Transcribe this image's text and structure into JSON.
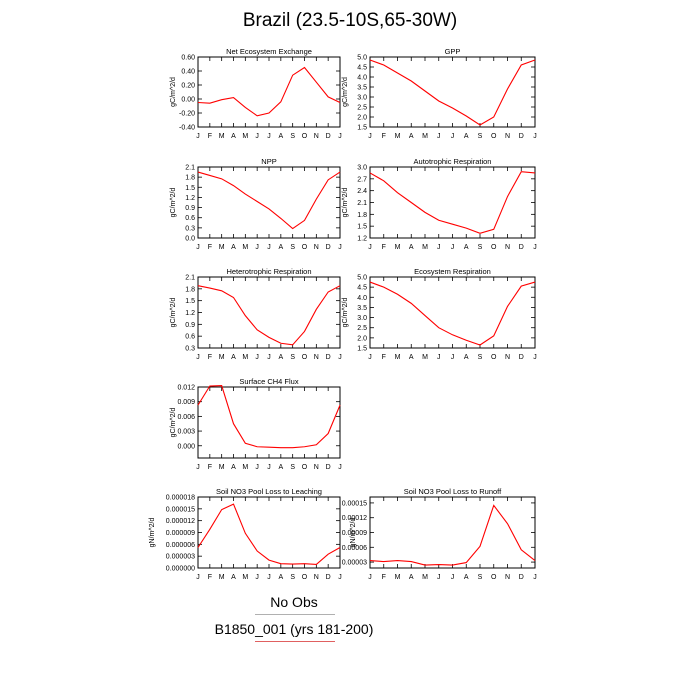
{
  "title": "Brazil (23.5-10S,65-30W)",
  "legend": {
    "obs_label": "No Obs",
    "case_label": "B1850_001 (yrs 181-200)",
    "colors": {
      "obs": "#b0b0b0",
      "case": "#ff0000"
    }
  },
  "month_labels": [
    "J",
    "F",
    "M",
    "A",
    "M",
    "J",
    "J",
    "A",
    "S",
    "O",
    "N",
    "D",
    "J"
  ],
  "chart_data": [
    {
      "type": "line",
      "title": "Net Ecosystem Exchange",
      "ylabel": "gC/m^2/d",
      "ylim": [
        -0.4,
        0.6
      ],
      "yticks": [
        "-0.40",
        "-0.20",
        "0.00",
        "0.20",
        "0.40",
        "0.60"
      ],
      "ytick_values": [
        -0.4,
        -0.2,
        0.0,
        0.2,
        0.4,
        0.6
      ],
      "x": [
        "J",
        "F",
        "M",
        "A",
        "M",
        "J",
        "J",
        "A",
        "S",
        "O",
        "N",
        "D",
        "J"
      ],
      "series": [
        {
          "values": [
            -0.05,
            -0.06,
            -0.01,
            0.02,
            -0.12,
            -0.24,
            -0.2,
            -0.04,
            0.34,
            0.45,
            0.24,
            0.03,
            -0.05
          ]
        }
      ]
    },
    {
      "type": "line",
      "title": "GPP",
      "ylabel": "gC/m^2/d",
      "ylim": [
        1.5,
        5.0
      ],
      "yticks": [
        "1.5",
        "2.0",
        "2.5",
        "3.0",
        "3.5",
        "4.0",
        "4.5",
        "5.0"
      ],
      "ytick_values": [
        1.5,
        2.0,
        2.5,
        3.0,
        3.5,
        4.0,
        4.5,
        5.0
      ],
      "x": [
        "J",
        "F",
        "M",
        "A",
        "M",
        "J",
        "J",
        "A",
        "S",
        "O",
        "N",
        "D",
        "J"
      ],
      "series": [
        {
          "values": [
            4.85,
            4.6,
            4.2,
            3.8,
            3.3,
            2.8,
            2.45,
            2.05,
            1.6,
            2.0,
            3.4,
            4.6,
            4.85
          ]
        }
      ]
    },
    {
      "type": "line",
      "title": "NPP",
      "ylabel": "gC/m^2/d",
      "ylim": [
        0.0,
        2.1
      ],
      "yticks": [
        "0.0",
        "0.3",
        "0.6",
        "0.9",
        "1.2",
        "1.5",
        "1.8",
        "2.1"
      ],
      "ytick_values": [
        0.0,
        0.3,
        0.6,
        0.9,
        1.2,
        1.5,
        1.8,
        2.1
      ],
      "x": [
        "J",
        "F",
        "M",
        "A",
        "M",
        "J",
        "J",
        "A",
        "S",
        "O",
        "N",
        "D",
        "J"
      ],
      "series": [
        {
          "values": [
            1.95,
            1.85,
            1.75,
            1.55,
            1.3,
            1.08,
            0.86,
            0.58,
            0.28,
            0.52,
            1.15,
            1.72,
            1.95
          ]
        }
      ]
    },
    {
      "type": "line",
      "title": "Autotrophic Respiration",
      "ylabel": "gC/m^2/d",
      "ylim": [
        1.2,
        3.0
      ],
      "yticks": [
        "1.2",
        "1.5",
        "1.8",
        "2.1",
        "2.4",
        "2.7",
        "3.0"
      ],
      "ytick_values": [
        1.2,
        1.5,
        1.8,
        2.1,
        2.4,
        2.7,
        3.0
      ],
      "x": [
        "J",
        "F",
        "M",
        "A",
        "M",
        "J",
        "J",
        "A",
        "S",
        "O",
        "N",
        "D",
        "J"
      ],
      "series": [
        {
          "values": [
            2.85,
            2.65,
            2.35,
            2.1,
            1.85,
            1.65,
            1.55,
            1.45,
            1.32,
            1.42,
            2.25,
            2.88,
            2.85
          ]
        }
      ]
    },
    {
      "type": "line",
      "title": "Heterotrophic Respiration",
      "ylabel": "gC/m^2/d",
      "ylim": [
        0.3,
        2.1
      ],
      "yticks": [
        "0.3",
        "0.6",
        "0.9",
        "1.2",
        "1.5",
        "1.8",
        "2.1"
      ],
      "ytick_values": [
        0.3,
        0.6,
        0.9,
        1.2,
        1.5,
        1.8,
        2.1
      ],
      "x": [
        "J",
        "F",
        "M",
        "A",
        "M",
        "J",
        "J",
        "A",
        "S",
        "O",
        "N",
        "D",
        "J"
      ],
      "series": [
        {
          "values": [
            1.88,
            1.82,
            1.75,
            1.58,
            1.12,
            0.76,
            0.57,
            0.42,
            0.38,
            0.72,
            1.28,
            1.72,
            1.88
          ]
        }
      ]
    },
    {
      "type": "line",
      "title": "Ecosystem Respiration",
      "ylabel": "gC/m^2/d",
      "ylim": [
        1.5,
        5.0
      ],
      "yticks": [
        "1.5",
        "2.0",
        "2.5",
        "3.0",
        "3.5",
        "4.0",
        "4.5",
        "5.0"
      ],
      "ytick_values": [
        1.5,
        2.0,
        2.5,
        3.0,
        3.5,
        4.0,
        4.5,
        5.0
      ],
      "x": [
        "J",
        "F",
        "M",
        "A",
        "M",
        "J",
        "J",
        "A",
        "S",
        "O",
        "N",
        "D",
        "J"
      ],
      "series": [
        {
          "values": [
            4.75,
            4.5,
            4.15,
            3.7,
            3.1,
            2.5,
            2.15,
            1.88,
            1.65,
            2.1,
            3.55,
            4.55,
            4.75
          ]
        }
      ]
    },
    {
      "type": "line",
      "title": "Surface CH4 Flux",
      "ylabel": "gC/m^2/d",
      "ylim": [
        -0.0025,
        0.012
      ],
      "yticks": [
        "0.000",
        "0.003",
        "0.006",
        "0.009",
        "0.012"
      ],
      "ytick_values": [
        0.0,
        0.003,
        0.006,
        0.009,
        0.012
      ],
      "x": [
        "J",
        "F",
        "M",
        "A",
        "M",
        "J",
        "J",
        "A",
        "S",
        "O",
        "N",
        "D",
        "J"
      ],
      "series": [
        {
          "values": [
            0.0083,
            0.0122,
            0.0123,
            0.0045,
            0.0005,
            -0.0002,
            -0.0003,
            -0.0004,
            -0.0004,
            -0.0002,
            0.0002,
            0.0025,
            0.0083
          ]
        }
      ]
    },
    {
      "type": "line",
      "title": "Soil NO3 Pool Loss to Leaching",
      "ylabel": "gN/m^2/d",
      "ylim": [
        0.0,
        1.8e-05
      ],
      "yticks": [
        "0.000000",
        "0.000003",
        "0.000006",
        "0.000009",
        "0.000012",
        "0.000015",
        "0.000018"
      ],
      "ytick_values": [
        0.0,
        3e-06,
        6e-06,
        9e-06,
        1.2e-05,
        1.5e-05,
        1.8e-05
      ],
      "x": [
        "J",
        "F",
        "M",
        "A",
        "M",
        "J",
        "J",
        "A",
        "S",
        "O",
        "N",
        "D",
        "J"
      ],
      "series": [
        {
          "values": [
            5.2e-06,
            9.8e-06,
            1.48e-05,
            1.62e-05,
            8.8e-06,
            4.3e-06,
            2e-06,
            1.1e-06,
            1e-06,
            1.1e-06,
            9e-07,
            3.5e-06,
            5.2e-06
          ]
        }
      ]
    },
    {
      "type": "line",
      "title": "Soil NO3 Pool Loss to Runoff",
      "ylabel": "gN/m^2/d",
      "ylim": [
        1.8e-05,
        0.000162
      ],
      "yticks": [
        "0.00003",
        "0.00006",
        "0.00009",
        "0.00012",
        "0.00015"
      ],
      "ytick_values": [
        3e-05,
        6e-05,
        9e-05,
        0.00012,
        0.00015
      ],
      "x": [
        "J",
        "F",
        "M",
        "A",
        "M",
        "J",
        "J",
        "A",
        "S",
        "O",
        "N",
        "D",
        "J"
      ],
      "series": [
        {
          "values": [
            3.3e-05,
            3.1e-05,
            3.3e-05,
            3.1e-05,
            2.4e-05,
            2.5e-05,
            2.4e-05,
            2.9e-05,
            6.2e-05,
            0.000145,
            0.000108,
            5.5e-05,
            3.3e-05
          ]
        }
      ]
    }
  ]
}
